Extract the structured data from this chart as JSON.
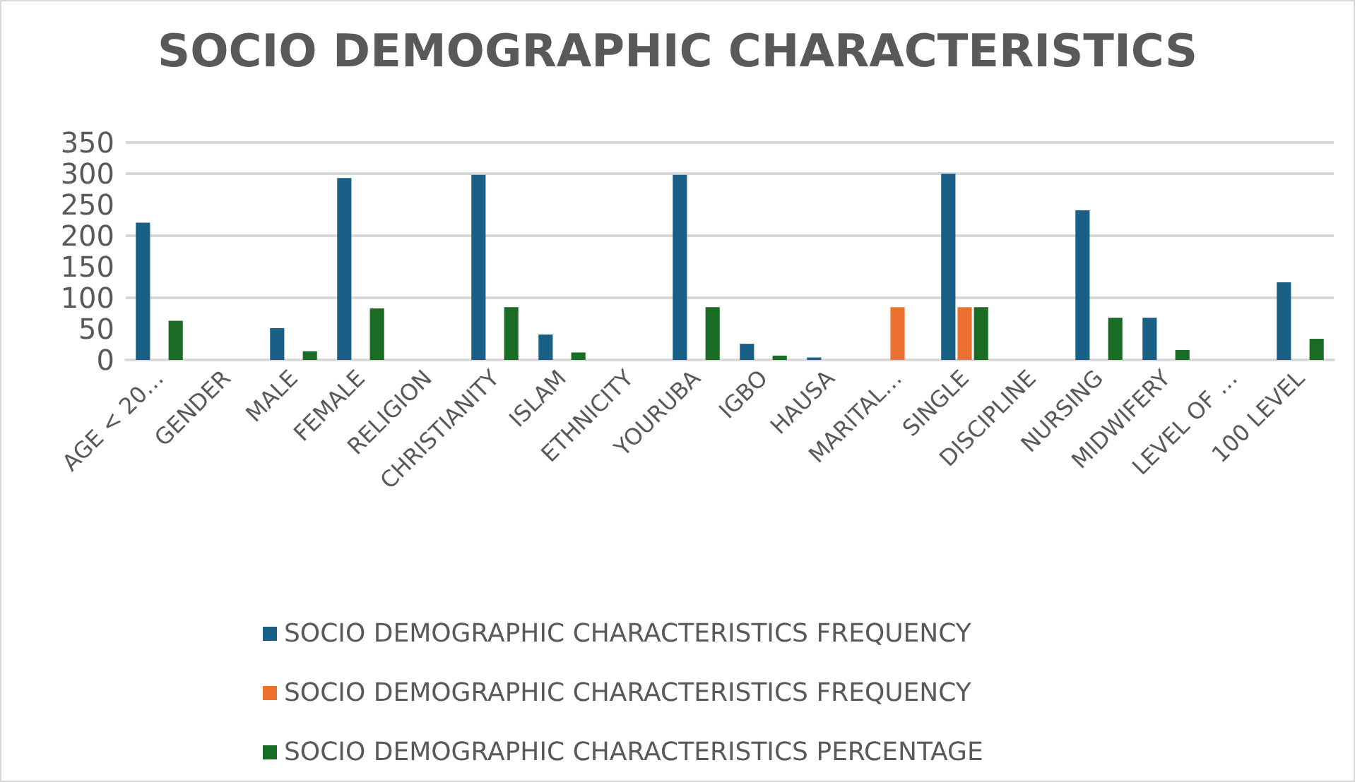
{
  "chart_data": {
    "type": "bar",
    "title": "SOCIO DEMOGRAPHIC CHARACTERISTICS",
    "categories": [
      "AGE < 20…",
      "GENDER",
      "MALE",
      "FEMALE",
      "RELIGION",
      "CHRISTIANITY",
      "ISLAM",
      "ETHNICITY",
      "YOURUBA",
      "IGBO",
      "HAUSA",
      "MARITAL…",
      "SINGLE",
      "DISCIPLINE",
      "NURSING",
      "MIDWIFERY",
      "LEVEL OF …",
      "100 LEVEL"
    ],
    "series": [
      {
        "name": "SOCIO DEMOGRAPHIC CHARACTERISTICS FREQUENCY",
        "color": "#1a5f85",
        "values": [
          221,
          null,
          51,
          293,
          null,
          298,
          41,
          null,
          298,
          26,
          4,
          null,
          300,
          null,
          241,
          68,
          null,
          125
        ]
      },
      {
        "name": "SOCIO DEMOGRAPHIC CHARACTERISTICS FREQUENCY",
        "color": "#ec7030",
        "values": [
          null,
          null,
          null,
          null,
          null,
          null,
          null,
          null,
          null,
          null,
          null,
          85,
          85,
          null,
          null,
          null,
          null,
          null
        ]
      },
      {
        "name": "SOCIO DEMOGRAPHIC CHARACTERISTICS PERCENTAGE",
        "color": "#1a6b24",
        "values": [
          63,
          null,
          14,
          83,
          null,
          85,
          12,
          null,
          85,
          7,
          null,
          null,
          85,
          null,
          68,
          16,
          null,
          34
        ]
      }
    ],
    "ylim": [
      0,
      350
    ],
    "yticks": [
      0,
      50,
      100,
      150,
      200,
      250,
      300,
      350
    ],
    "grid": "y",
    "legend": "bottom"
  }
}
